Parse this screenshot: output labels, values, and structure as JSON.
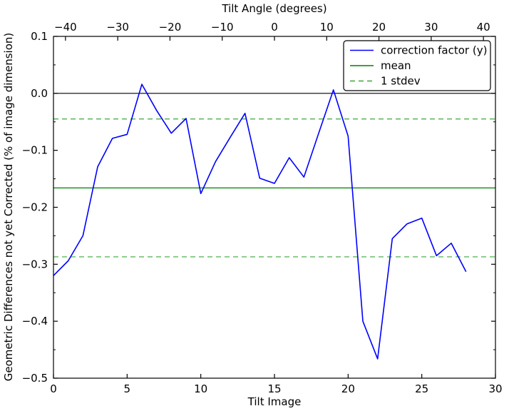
{
  "figure": {
    "background": "#ffffff"
  },
  "chart_data": {
    "type": "line",
    "top_axis": {
      "label": "Tilt Angle (degrees)",
      "range": [
        -42.3,
        42.3
      ],
      "ticks": [
        -40,
        -30,
        -20,
        -10,
        0,
        10,
        20,
        30,
        40
      ],
      "tick_labels": [
        "−40",
        "−30",
        "−20",
        "−10",
        "0",
        "10",
        "20",
        "30",
        "40"
      ]
    },
    "bottom_axis": {
      "label": "Tilt Image",
      "range": [
        0,
        30
      ],
      "ticks": [
        0,
        5,
        10,
        15,
        20,
        25,
        30
      ],
      "tick_labels": [
        "0",
        "5",
        "10",
        "15",
        "20",
        "25",
        "30"
      ]
    },
    "y_axis": {
      "label": "Geometric Differences not yet Corrected (% of image dimension)",
      "range": [
        -0.5,
        0.1
      ],
      "ticks": [
        0.1,
        0.0,
        -0.1,
        -0.2,
        -0.3,
        -0.4,
        -0.5
      ],
      "tick_labels": [
        "0.1",
        "0.0",
        "−0.1",
        "−0.2",
        "−0.3",
        "−0.4",
        "−0.5"
      ],
      "minor_ticks": [
        0.05,
        -0.05,
        -0.15,
        -0.25,
        -0.35,
        -0.45
      ]
    },
    "series": [
      {
        "name": "correction factor (y)",
        "color": "#0000ff",
        "style": "solid",
        "x": [
          0,
          1,
          2,
          3,
          4,
          5,
          6,
          7,
          8,
          9,
          10,
          11,
          12,
          13,
          14,
          15,
          16,
          17,
          18,
          19,
          20,
          21,
          22,
          23,
          24,
          25,
          26,
          27,
          28
        ],
        "y": [
          -0.32,
          -0.294,
          -0.25,
          -0.129,
          -0.079,
          -0.072,
          0.016,
          -0.03,
          -0.07,
          -0.044,
          -0.176,
          -0.12,
          -0.077,
          -0.035,
          -0.149,
          -0.158,
          -0.113,
          -0.147,
          -0.07,
          0.006,
          -0.075,
          -0.4,
          -0.466,
          -0.255,
          -0.229,
          -0.219,
          -0.285,
          -0.263,
          -0.313
        ]
      }
    ],
    "reference_lines": [
      {
        "name": "zero-line",
        "y": 0.0,
        "color": "#000000",
        "style": "solid"
      },
      {
        "name": "mean-line",
        "y": -0.166,
        "color": "#008000",
        "style": "solid"
      },
      {
        "name": "stdev-line-upper",
        "y": -0.045,
        "color": "#3ca63c",
        "style": "dashed"
      },
      {
        "name": "stdev-line-lower",
        "y": -0.287,
        "color": "#3ca63c",
        "style": "dashed"
      }
    ],
    "legend": {
      "position": "upper-right",
      "entries": [
        {
          "label": "correction factor (y)",
          "color": "#0000ff",
          "style": "solid"
        },
        {
          "label": "mean",
          "color": "#008000",
          "style": "solid"
        },
        {
          "label": "1 stdev",
          "color": "#3ca63c",
          "style": "dashed"
        }
      ]
    }
  }
}
